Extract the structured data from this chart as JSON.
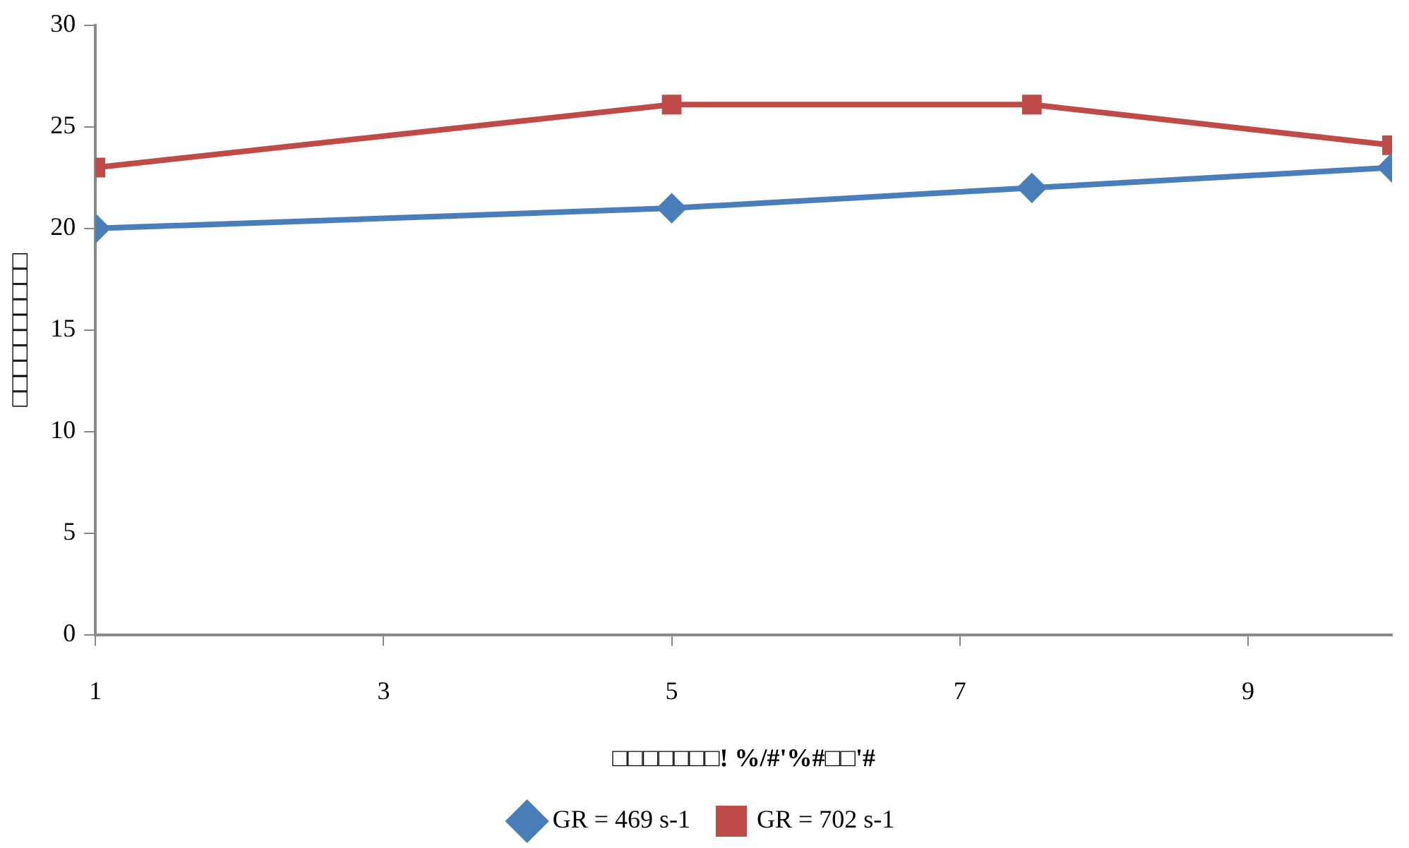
{
  "chart_data": {
    "type": "line",
    "xlabel": "□□□□□□□! %/#'%#□□'#",
    "ylabel": "□□□□□□□□□□",
    "x": [
      1,
      5,
      7.5,
      10
    ],
    "series": [
      {
        "name": "GR = 469 s-1",
        "color": "#4a7ebb",
        "values": [
          20,
          21,
          22,
          23
        ],
        "marker": "diamond"
      },
      {
        "name": "GR = 702 s-1",
        "color": "#be4b48",
        "values": [
          23,
          26.1,
          26.1,
          24.1
        ],
        "marker": "square"
      }
    ],
    "xlim": [
      1,
      10
    ],
    "xticks": [
      1,
      3,
      5,
      7,
      9
    ],
    "ylim": [
      0,
      30
    ],
    "yticks": [
      0,
      5,
      10,
      15,
      20,
      25,
      30
    ],
    "grid": false,
    "legend": "bottom"
  }
}
